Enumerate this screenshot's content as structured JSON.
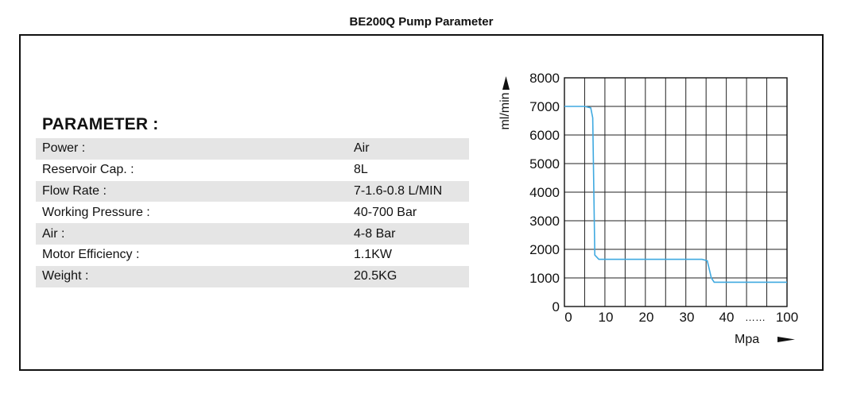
{
  "title": "BE200Q Pump Parameter",
  "heading": "PARAMETER :",
  "rows": [
    {
      "label": "Power :",
      "value": "Air"
    },
    {
      "label": "Reservoir Cap. :",
      "value": "8L"
    },
    {
      "label": "Flow Rate :",
      "value": "7-1.6-0.8 L/MIN"
    },
    {
      "label": "Working Pressure :",
      "value": "40-700 Bar"
    },
    {
      "label": "Air :",
      "value": "4-8 Bar"
    },
    {
      "label": "Motor Efficiency :",
      "value": "1.1KW"
    },
    {
      "label": "Weight :",
      "value": "20.5KG"
    }
  ],
  "chart_data": {
    "type": "line",
    "ylabel": "ml/min",
    "xlabel": "Mpa",
    "y_ticks": [
      "8000",
      "7000",
      "6000",
      "5000",
      "4000",
      "3000",
      "2000",
      "1000",
      "0"
    ],
    "x_ticks": [
      "0",
      "10",
      "20",
      "30",
      "40",
      "100"
    ],
    "x_break": "……",
    "ylim": [
      0,
      8000
    ],
    "xlim": [
      0,
      100
    ],
    "grid": true,
    "line_color": "#3fa9e0",
    "series": [
      {
        "x": [
          0,
          5,
          6.5,
          7,
          7.5,
          8.5,
          34,
          35.3,
          36.3,
          37,
          46.1,
          100
        ],
        "y": [
          7000,
          7000,
          6950,
          6600,
          1800,
          1650,
          1650,
          1600,
          1000,
          850,
          850,
          850
        ]
      }
    ]
  }
}
